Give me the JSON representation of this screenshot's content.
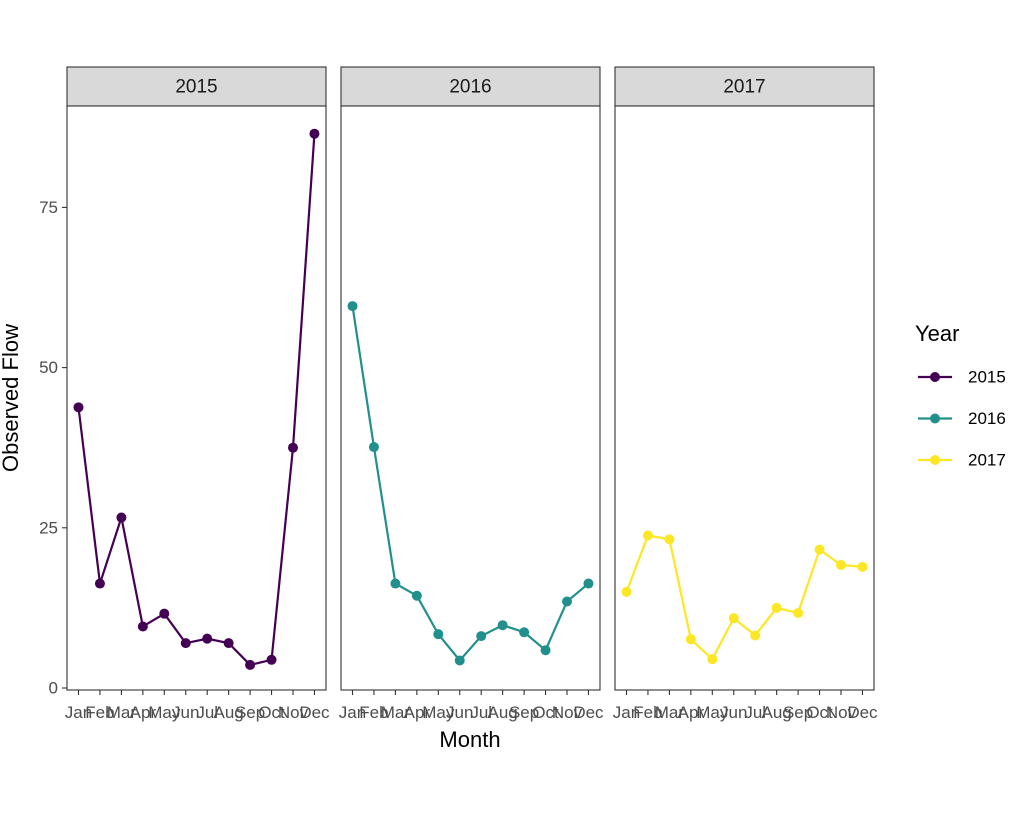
{
  "chart_data": {
    "type": "line",
    "facet_by": "Year",
    "xlabel": "Month",
    "ylabel": "Observed Flow",
    "ylim": [
      0,
      90
    ],
    "yticks": [
      0,
      25,
      50,
      75
    ],
    "categories": [
      "Jan",
      "Feb",
      "Mar",
      "Apr",
      "May",
      "Jun",
      "Jul",
      "Aug",
      "Sep",
      "Oct",
      "Nov",
      "Dec"
    ],
    "grid": false,
    "legend": {
      "title": "Year",
      "placement": "right",
      "entries": [
        "2015",
        "2016",
        "2017"
      ]
    },
    "series": [
      {
        "name": "2015",
        "color": "#440154",
        "values": [
          43.8,
          16.3,
          26.6,
          9.6,
          11.6,
          7.0,
          7.7,
          7.0,
          3.6,
          4.4,
          37.5,
          86.5
        ]
      },
      {
        "name": "2016",
        "color": "#21908C",
        "values": [
          59.6,
          37.6,
          16.3,
          14.4,
          8.4,
          4.3,
          8.1,
          9.8,
          8.7,
          5.9,
          13.5,
          16.3
        ]
      },
      {
        "name": "2017",
        "color": "#FDE725",
        "values": [
          15.0,
          23.8,
          23.2,
          7.6,
          4.5,
          10.9,
          8.2,
          12.5,
          11.7,
          21.6,
          19.2,
          18.9
        ]
      }
    ]
  }
}
